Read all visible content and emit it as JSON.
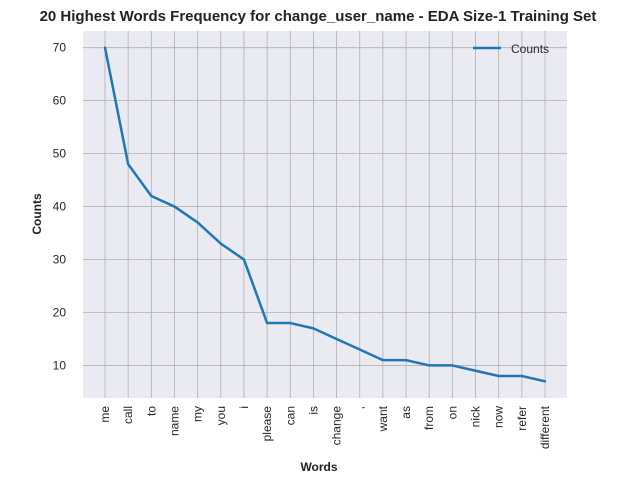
{
  "chart_data": {
    "type": "line",
    "title": "20 Highest Words Frequency for change_user_name - EDA Size-1 Training Set",
    "xlabel": "Words",
    "ylabel": "Counts",
    "categories": [
      "me",
      "call",
      "to",
      "name",
      "my",
      "you",
      "i",
      "please",
      "can",
      "is",
      "change",
      ",",
      "want",
      "as",
      "from",
      "on",
      "nick",
      "now",
      "refer",
      "different"
    ],
    "series": [
      {
        "name": "Counts",
        "values": [
          70,
          48,
          42,
          40,
          37,
          33,
          30,
          18,
          18,
          17,
          15,
          13,
          11,
          11,
          10,
          10,
          9,
          8,
          8,
          7
        ]
      }
    ],
    "yticks": [
      10,
      20,
      30,
      40,
      50,
      60,
      70
    ],
    "ylim": [
      3.85,
      73.15
    ],
    "grid": true,
    "legend": "upper right",
    "colors": {
      "line": "#1f77b4",
      "background": "#eaeaf2",
      "grid": "#b0b0b0"
    }
  }
}
